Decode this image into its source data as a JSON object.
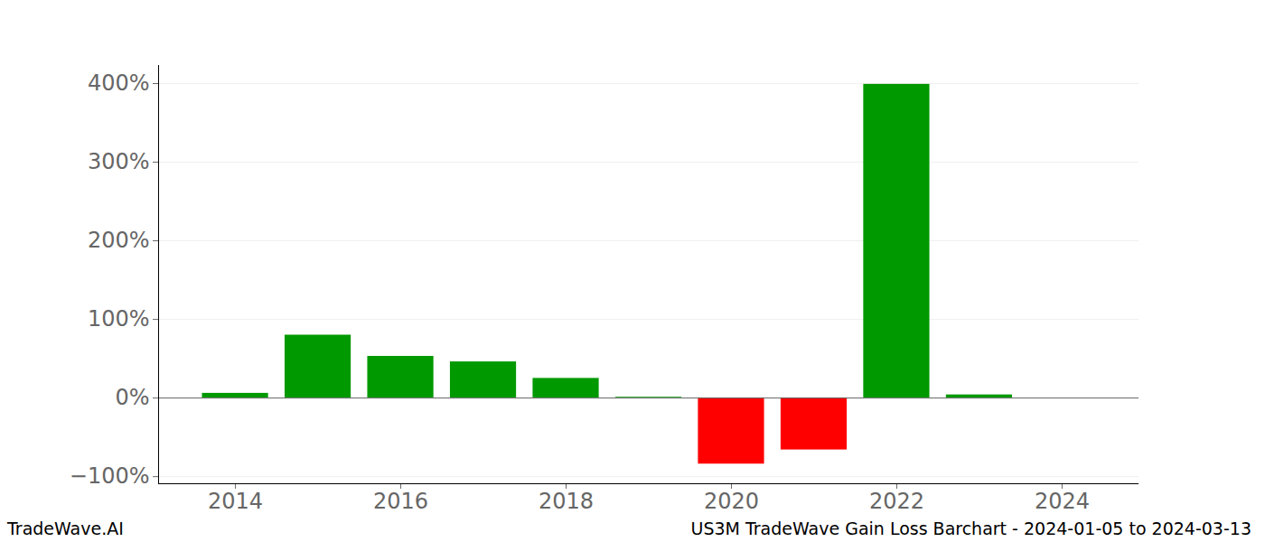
{
  "chart_data": {
    "type": "bar",
    "title": "US3M TradeWave Gain Loss Barchart - 2024-01-05 to 2024-03-13",
    "annotations": [
      "TradeWave.AI"
    ],
    "x": [
      2014,
      2015,
      2016,
      2017,
      2018,
      2019,
      2020,
      2021,
      2022,
      2023
    ],
    "values": [
      6,
      80,
      53,
      46,
      25,
      1,
      -84,
      -66,
      399,
      4
    ],
    "colors": [
      "#009900",
      "#009900",
      "#009900",
      "#009900",
      "#009900",
      "#009900",
      "#ff0000",
      "#ff0000",
      "#009900",
      "#009900"
    ],
    "xlim": [
      2013.07,
      2024.93
    ],
    "xticks": [
      2014,
      2016,
      2018,
      2020,
      2022,
      2024
    ],
    "ylim": [
      -109,
      423
    ],
    "yticks": [
      {
        "value": -100,
        "label": "−100%"
      },
      {
        "value": 0,
        "label": "0%"
      },
      {
        "value": 100,
        "label": "100%"
      },
      {
        "value": 200,
        "label": "200%"
      },
      {
        "value": 300,
        "label": "300%"
      },
      {
        "value": 400,
        "label": "400%"
      }
    ],
    "grid": true
  }
}
